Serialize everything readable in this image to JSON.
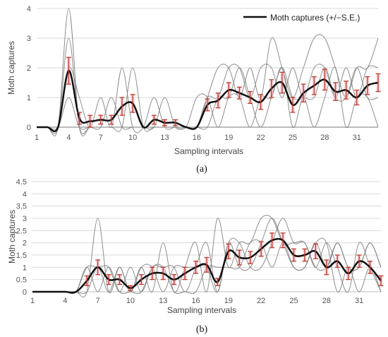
{
  "legend": {
    "label": "Moth captures (+/−S.E.)"
  },
  "chart_data": [
    {
      "type": "line",
      "panel": "(a)",
      "xlabel": "Sampling intervals",
      "ylabel": "Moth captures",
      "xlim": [
        1,
        33
      ],
      "ylim": [
        0,
        4
      ],
      "yticks": [
        0,
        1,
        2,
        3,
        4
      ],
      "xticks": [
        1,
        4,
        7,
        10,
        13,
        16,
        19,
        22,
        25,
        28,
        31
      ],
      "grid": "horizontal",
      "legend_position": "top-right",
      "individual_series": [
        {
          "values": [
            0,
            0,
            0,
            4,
            0,
            0,
            0,
            0,
            0,
            0,
            0,
            0,
            0,
            0,
            0,
            0,
            0,
            0,
            0,
            0,
            0,
            0,
            0,
            0,
            0,
            0,
            0,
            0,
            0,
            0,
            0,
            0,
            0
          ]
        },
        {
          "values": [
            0,
            0,
            0,
            3,
            0,
            0,
            0,
            0,
            0,
            2,
            0,
            0,
            0,
            0,
            0,
            0,
            0,
            0,
            0,
            0,
            0,
            0,
            0,
            0,
            0,
            0,
            0,
            0,
            0,
            0,
            0,
            0,
            0
          ]
        },
        {
          "values": [
            0,
            0,
            0,
            2,
            1,
            0,
            1,
            0,
            2,
            0,
            0,
            1,
            0,
            0,
            0,
            0,
            0,
            0,
            0,
            0,
            0,
            0,
            0,
            0,
            0,
            0,
            0,
            0,
            0,
            0,
            0,
            0,
            0
          ]
        },
        {
          "values": [
            0,
            0,
            0,
            1,
            0,
            0,
            0,
            1,
            0,
            0,
            0,
            0,
            1,
            0,
            0,
            0,
            0,
            0,
            0,
            0,
            0,
            0,
            0,
            0,
            0,
            0,
            0,
            0,
            0,
            0,
            0,
            0,
            0
          ]
        },
        {
          "values": [
            0,
            0,
            0,
            0,
            0,
            0,
            0,
            0,
            0,
            0,
            0,
            0,
            0,
            0,
            0,
            0,
            1,
            2,
            2,
            1,
            2,
            1,
            3,
            2,
            1,
            2,
            3,
            3,
            2,
            1,
            2,
            2,
            3
          ]
        },
        {
          "values": [
            0,
            0,
            0,
            0,
            0,
            0,
            0,
            0,
            0,
            0,
            0,
            0,
            0,
            0,
            0,
            0,
            1,
            1,
            2,
            2,
            1,
            2,
            2,
            1,
            2,
            1,
            2,
            2,
            1,
            2,
            1,
            2,
            2
          ]
        },
        {
          "values": [
            0,
            0,
            0,
            0,
            0,
            0,
            0,
            0,
            0,
            0,
            0,
            0,
            0,
            0,
            0,
            0,
            0,
            1,
            1,
            2,
            1,
            0,
            1,
            2,
            1,
            1,
            1,
            2,
            1,
            1,
            2,
            1,
            1
          ]
        },
        {
          "values": [
            0,
            0,
            0,
            0,
            0,
            0,
            0,
            0,
            0,
            0,
            0,
            0,
            0,
            0,
            0,
            1,
            1,
            0,
            1,
            1,
            0,
            1,
            1,
            2,
            0,
            1,
            0,
            1,
            2,
            0,
            1,
            1,
            0
          ]
        }
      ],
      "series": [
        {
          "name": "Moth captures (+/−S.E.)",
          "x": [
            1,
            2,
            3,
            4,
            5,
            6,
            7,
            8,
            9,
            10,
            11,
            12,
            13,
            14,
            15,
            16,
            17,
            18,
            19,
            20,
            21,
            22,
            23,
            24,
            25,
            26,
            27,
            28,
            29,
            30,
            31,
            32,
            33
          ],
          "values": [
            0,
            0,
            0,
            1.9,
            0.3,
            0.2,
            0.25,
            0.25,
            0.7,
            0.8,
            0,
            0.25,
            0.15,
            0.15,
            0,
            0,
            0.75,
            0.9,
            1.25,
            1.15,
            1.0,
            0.85,
            1.3,
            1.5,
            0.75,
            1.15,
            1.4,
            1.6,
            1.2,
            1.25,
            1.0,
            1.4,
            1.5
          ],
          "se": [
            0,
            0,
            0,
            0.45,
            0.2,
            0.2,
            0.15,
            0.15,
            0.3,
            0.3,
            0,
            0.15,
            0.1,
            0.1,
            0,
            0,
            0.2,
            0.25,
            0.25,
            0.2,
            0.2,
            0.25,
            0.3,
            0.35,
            0.25,
            0.3,
            0.3,
            0.35,
            0.3,
            0.3,
            0.25,
            0.3,
            0.3
          ]
        }
      ]
    },
    {
      "type": "line",
      "panel": "(b)",
      "xlabel": "Sampling intervals",
      "ylabel": "Moth captures",
      "xlim": [
        1,
        33
      ],
      "ylim": [
        0,
        4.5
      ],
      "yticks": [
        0,
        0.5,
        1,
        1.5,
        2,
        2.5,
        3,
        3.5,
        4,
        4.5
      ],
      "xticks": [
        1,
        4,
        7,
        10,
        13,
        16,
        19,
        22,
        25,
        28,
        31
      ],
      "grid": "horizontal",
      "individual_series": [
        {
          "values": [
            0,
            0,
            0,
            0,
            0,
            0,
            3,
            0,
            1,
            0,
            1,
            0,
            2,
            0,
            1,
            2,
            0,
            3,
            1,
            2,
            2,
            3,
            3,
            2,
            2,
            2,
            1,
            2,
            1,
            0,
            2,
            1,
            0
          ]
        },
        {
          "values": [
            0,
            0,
            0,
            0,
            0,
            1,
            1,
            1,
            0,
            1,
            0,
            1,
            1,
            1,
            0,
            1,
            2,
            0,
            2,
            1,
            1,
            2,
            3,
            2,
            1,
            1,
            2,
            1,
            2,
            1,
            1,
            2,
            1
          ]
        },
        {
          "values": [
            0,
            0,
            0,
            0,
            0,
            0,
            1,
            0,
            1,
            0,
            1,
            1,
            0,
            1,
            1,
            1,
            1,
            0,
            2,
            2,
            1,
            1,
            2,
            3,
            2,
            2,
            1,
            1,
            2,
            1,
            1,
            2,
            1
          ]
        },
        {
          "values": [
            0,
            0,
            0,
            0,
            0,
            1,
            0,
            1,
            0,
            0,
            0,
            1,
            1,
            0,
            0,
            0,
            1,
            1,
            1,
            1,
            2,
            2,
            1,
            2,
            1,
            1,
            2,
            2,
            0,
            1,
            0,
            1,
            0
          ]
        }
      ],
      "series": [
        {
          "name": "Moth captures (+/−S.E.)",
          "x": [
            1,
            2,
            3,
            4,
            5,
            6,
            7,
            8,
            9,
            10,
            11,
            12,
            13,
            14,
            15,
            16,
            17,
            18,
            19,
            20,
            21,
            22,
            23,
            24,
            25,
            26,
            27,
            28,
            29,
            30,
            31,
            32,
            33
          ],
          "values": [
            0,
            0,
            0,
            0,
            0,
            0.45,
            1.0,
            0.5,
            0.5,
            0.15,
            0.5,
            0.75,
            0.75,
            0.5,
            0.75,
            1.0,
            1.1,
            0.4,
            1.65,
            1.4,
            1.4,
            1.75,
            2.1,
            2.1,
            1.5,
            1.5,
            1.65,
            1.0,
            1.25,
            0.75,
            1.25,
            1.0,
            0.45
          ],
          "se": [
            0,
            0,
            0,
            0,
            0,
            0.2,
            0.3,
            0.2,
            0.2,
            0.1,
            0.2,
            0.25,
            0.25,
            0.2,
            0.25,
            0.25,
            0.3,
            0.15,
            0.3,
            0.3,
            0.25,
            0.3,
            0.3,
            0.3,
            0.25,
            0.25,
            0.3,
            0.3,
            0.25,
            0.25,
            0.25,
            0.25,
            0.2
          ]
        }
      ]
    }
  ]
}
